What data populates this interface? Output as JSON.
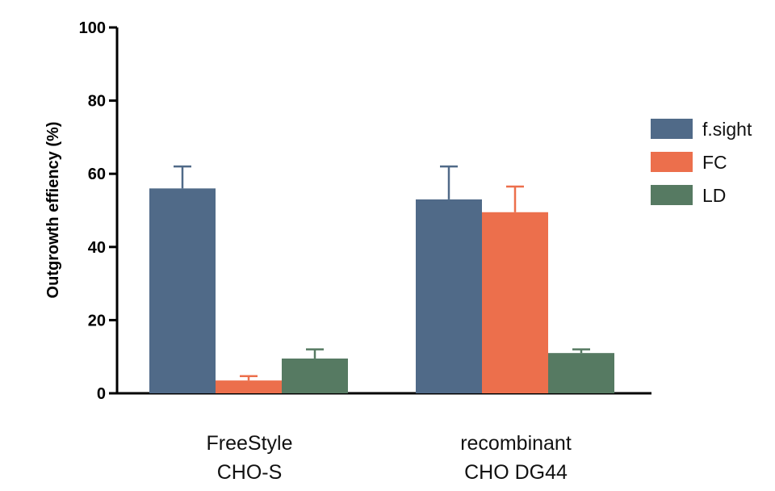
{
  "chart_data": {
    "type": "bar",
    "title": "",
    "xlabel": "",
    "ylabel": "Outgrowth effiency (%)",
    "ylim": [
      0,
      100
    ],
    "yticks": [
      0,
      20,
      40,
      60,
      80,
      100
    ],
    "grid": false,
    "legend_position": "right",
    "categories": [
      {
        "lines": [
          "FreeStyle",
          "CHO-S"
        ]
      },
      {
        "lines": [
          "recombinant",
          "CHO DG44"
        ]
      }
    ],
    "series": [
      {
        "name": "f.sight",
        "color": "#506a88",
        "values": [
          56,
          53
        ],
        "errors": [
          6,
          9
        ]
      },
      {
        "name": "FC",
        "color": "#ec6f4c",
        "values": [
          3.5,
          49.5
        ],
        "errors": [
          1.2,
          7
        ]
      },
      {
        "name": "LD",
        "color": "#567a62",
        "values": [
          9.5,
          11
        ],
        "errors": [
          2.5,
          1
        ]
      }
    ]
  }
}
